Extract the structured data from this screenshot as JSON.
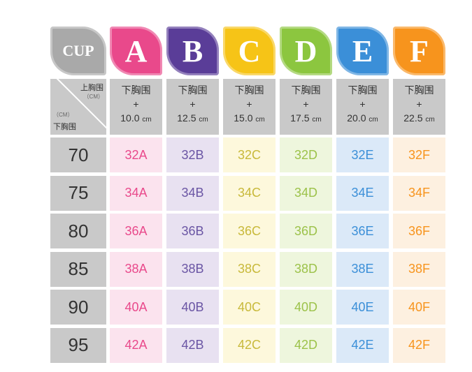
{
  "header": {
    "cup_label": "CUP",
    "top_label": "上胸围",
    "top_unit": "（CM）",
    "bottom_unit": "（CM）",
    "bottom_label": "下胸围"
  },
  "cups": [
    {
      "letter": "A",
      "formula": "下胸围",
      "plus": "+",
      "diff": "10.0",
      "unit": "cm",
      "color": "#e9498b",
      "bg": "#fbe3ee",
      "text": "#e9498b"
    },
    {
      "letter": "B",
      "formula": "下胸围",
      "plus": "+",
      "diff": "12.5",
      "unit": "cm",
      "color": "#5a3d98",
      "bg": "#e8e1f1",
      "text": "#6a55a4"
    },
    {
      "letter": "C",
      "formula": "下胸围",
      "plus": "+",
      "diff": "15.0",
      "unit": "cm",
      "color": "#f6c417",
      "bg": "#fdf8dc",
      "text": "#c8b93a"
    },
    {
      "letter": "D",
      "formula": "下胸围",
      "plus": "+",
      "diff": "17.5",
      "unit": "cm",
      "color": "#8cc63f",
      "bg": "#eef6dd",
      "text": "#9cc24a"
    },
    {
      "letter": "E",
      "formula": "下胸围",
      "plus": "+",
      "diff": "20.0",
      "unit": "cm",
      "color": "#3b8fd8",
      "bg": "#dbe9f8",
      "text": "#3b8fd8"
    },
    {
      "letter": "F",
      "formula": "下胸围",
      "plus": "+",
      "diff": "22.5",
      "unit": "cm",
      "color": "#f7941d",
      "bg": "#fdf0e0",
      "text": "#f7941d"
    }
  ],
  "rows": [
    {
      "band": "70",
      "sizes": [
        "32A",
        "32B",
        "32C",
        "32D",
        "32E",
        "32F"
      ]
    },
    {
      "band": "75",
      "sizes": [
        "34A",
        "34B",
        "34C",
        "34D",
        "34E",
        "34F"
      ]
    },
    {
      "band": "80",
      "sizes": [
        "36A",
        "36B",
        "36C",
        "36D",
        "36E",
        "36F"
      ]
    },
    {
      "band": "85",
      "sizes": [
        "38A",
        "38B",
        "38C",
        "38D",
        "38E",
        "38F"
      ]
    },
    {
      "band": "90",
      "sizes": [
        "40A",
        "40B",
        "40C",
        "40D",
        "40E",
        "40F"
      ]
    },
    {
      "band": "95",
      "sizes": [
        "42A",
        "42B",
        "42C",
        "42D",
        "42E",
        "42F"
      ]
    }
  ]
}
